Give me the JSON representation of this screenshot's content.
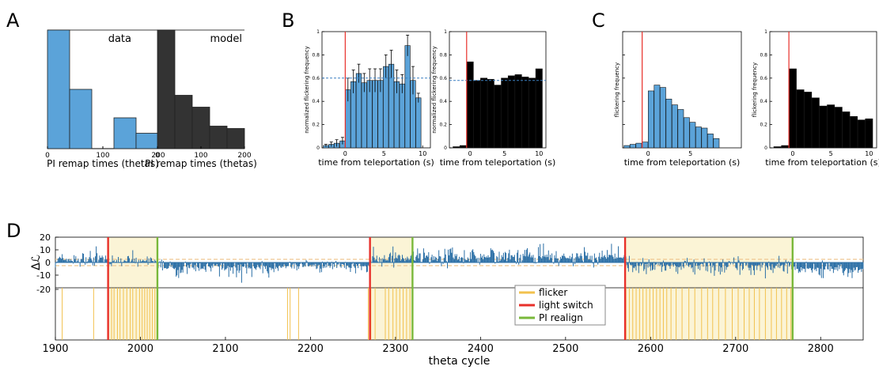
{
  "panel_labels": {
    "a": "A",
    "b": "B",
    "c": "C",
    "d": "D"
  },
  "colors": {
    "blue": "#5ba3d9",
    "blue_dark": "#2b6fa6",
    "black": "#000000",
    "dark_gray": "#333333",
    "red": "#e8302a",
    "green": "#79b83a",
    "flicker": "#f2c14e",
    "shade": "#fbf4d6",
    "dashed_blue": "#3a7fc0"
  },
  "chart_data": [
    {
      "id": "A-data",
      "type": "bar",
      "title": "data",
      "xlabel": "PI remap times (thetas)",
      "ylabel": "",
      "xlim": [
        0,
        200
      ],
      "ylim": [
        0,
        1
      ],
      "xticks": [
        "0",
        "100",
        "200"
      ],
      "bins": [
        [
          0,
          40
        ],
        [
          40,
          80
        ],
        [
          120,
          160
        ],
        [
          160,
          200
        ]
      ],
      "values": [
        1.0,
        0.5,
        0.26,
        0.13
      ]
    },
    {
      "id": "A-model",
      "type": "bar",
      "title": "model",
      "xlabel": "PI remap times (thetas)",
      "ylabel": "",
      "xlim": [
        0,
        200
      ],
      "ylim": [
        0,
        1
      ],
      "xticks": [
        "0",
        "100",
        "200"
      ],
      "bins": [
        [
          0,
          40
        ],
        [
          40,
          80
        ],
        [
          80,
          120
        ],
        [
          120,
          160
        ],
        [
          160,
          200
        ]
      ],
      "values": [
        1.0,
        0.45,
        0.35,
        0.19,
        0.17
      ]
    },
    {
      "id": "B-data",
      "type": "bar",
      "title": "",
      "xlabel": "time from teleportation (s)",
      "ylabel": "normalized flickering frequency",
      "xlim": [
        -3,
        11
      ],
      "ylim": [
        0,
        1
      ],
      "xticks": [
        "0",
        "5",
        "10"
      ],
      "yticks": [
        "0",
        "0.2",
        "0.4",
        "0.6",
        "0.8",
        "1"
      ],
      "x": [
        -2.5,
        -1.8,
        -1.1,
        -0.35,
        0.35,
        1.05,
        1.75,
        2.45,
        3.15,
        3.85,
        4.55,
        5.25,
        5.95,
        6.65,
        7.35,
        8.05,
        8.75,
        9.45
      ],
      "values": [
        0.02,
        0.03,
        0.04,
        0.06,
        0.5,
        0.57,
        0.64,
        0.56,
        0.58,
        0.58,
        0.58,
        0.7,
        0.72,
        0.57,
        0.55,
        0.88,
        0.58,
        0.43
      ],
      "errors": [
        0.01,
        0.02,
        0.03,
        0.03,
        0.1,
        0.1,
        0.08,
        0.08,
        0.1,
        0.1,
        0.1,
        0.1,
        0.12,
        0.1,
        0.08,
        0.09,
        0.12,
        0.04
      ],
      "vline": 0,
      "hline": 0.6
    },
    {
      "id": "B-model",
      "type": "bar",
      "title": "",
      "xlabel": "time from teleportation (s)",
      "ylabel": "normalized flickering frequency",
      "xlim": [
        -3,
        11
      ],
      "ylim": [
        0,
        1
      ],
      "xticks": [
        "0",
        "5",
        "10"
      ],
      "yticks": [
        "0",
        "0.2",
        "0.4",
        "0.6",
        "0.8",
        "1"
      ],
      "x": [
        -2,
        -1,
        0,
        1,
        2,
        3,
        4,
        5,
        6,
        7,
        8,
        9,
        10
      ],
      "values": [
        0.01,
        0.02,
        0.74,
        0.58,
        0.6,
        0.59,
        0.54,
        0.6,
        0.62,
        0.63,
        0.61,
        0.6,
        0.68
      ],
      "vline": -0.5,
      "hline": 0.58
    },
    {
      "id": "C-data",
      "type": "bar",
      "title": "",
      "xlabel": "time from teleportation (s)",
      "ylabel": "flickering frequency",
      "xlim": [
        -3,
        11
      ],
      "ylim": [
        0,
        1
      ],
      "xticks": [
        "0",
        "5"
      ],
      "x": [
        -2.5,
        -1.8,
        -1.1,
        -0.35,
        0.35,
        1.05,
        1.75,
        2.45,
        3.15,
        3.85,
        4.55,
        5.25,
        5.95,
        6.65,
        7.35,
        8.05
      ],
      "values": [
        0.02,
        0.03,
        0.04,
        0.05,
        0.49,
        0.54,
        0.52,
        0.42,
        0.37,
        0.33,
        0.26,
        0.22,
        0.18,
        0.17,
        0.12,
        0.08
      ],
      "vline": -0.7
    },
    {
      "id": "C-model",
      "type": "bar",
      "title": "",
      "xlabel": "time from teleportation (s)",
      "ylabel": "flickering frequency",
      "xlim": [
        -3,
        11
      ],
      "ylim": [
        0,
        1
      ],
      "xticks": [
        "0",
        "5",
        "10"
      ],
      "x": [
        -2,
        -1,
        0,
        1,
        2,
        3,
        4,
        5,
        6,
        7,
        8,
        9,
        10
      ],
      "values": [
        0.01,
        0.02,
        0.68,
        0.5,
        0.48,
        0.43,
        0.36,
        0.37,
        0.35,
        0.31,
        0.27,
        0.24,
        0.25
      ],
      "vline": -0.5
    },
    {
      "id": "D",
      "type": "line",
      "title": "",
      "xlabel": "theta cycle",
      "ylabel": "Δℒ",
      "xlim": [
        1900,
        2850
      ],
      "ylim": [
        -20,
        20
      ],
      "xticks": [
        "1900",
        "2000",
        "2100",
        "2200",
        "2300",
        "2400",
        "2500",
        "2600",
        "2700",
        "2800"
      ],
      "yticks": [
        "20",
        "10",
        "0",
        "-10",
        "-20"
      ],
      "light_switch": [
        1962,
        2270,
        2570
      ],
      "pi_realign": [
        2020,
        2320,
        2767
      ],
      "threshold": 2.5,
      "segments": [
        {
          "from": 1900,
          "to": 1962,
          "mean": 2.5,
          "amp": 7
        },
        {
          "from": 1962,
          "to": 2020,
          "mean": 1.0,
          "amp": 6
        },
        {
          "from": 2020,
          "to": 2160,
          "mean": -4.5,
          "amp": 8
        },
        {
          "from": 2160,
          "to": 2270,
          "mean": -3.0,
          "amp": 6
        },
        {
          "from": 2270,
          "to": 2320,
          "mean": 2.5,
          "amp": 9
        },
        {
          "from": 2320,
          "to": 2570,
          "mean": 4.0,
          "amp": 9
        },
        {
          "from": 2570,
          "to": 2767,
          "mean": -2.5,
          "amp": 9
        },
        {
          "from": 2767,
          "to": 2850,
          "mean": -5.0,
          "amp": 8
        }
      ],
      "flicker_events": [
        1908,
        1945,
        1962,
        1966,
        1969,
        1973,
        1976,
        1980,
        1984,
        1988,
        1991,
        1995,
        1999,
        2002,
        2005,
        2008,
        2011,
        2014,
        2017,
        2173,
        2176,
        2186,
        2268,
        2271,
        2276,
        2288,
        2292,
        2297,
        2301,
        2305,
        2309,
        2313,
        2317,
        2571,
        2575,
        2579,
        2583,
        2587,
        2591,
        2595,
        2599,
        2603,
        2607,
        2611,
        2615,
        2619,
        2624,
        2630,
        2637,
        2645,
        2652,
        2660,
        2667,
        2673,
        2680,
        2688,
        2696,
        2703,
        2710,
        2716,
        2722,
        2728,
        2735,
        2742,
        2748,
        2754,
        2760,
        2765
      ]
    }
  ],
  "legend": {
    "items": [
      {
        "label": "flicker",
        "color": "#f2c14e"
      },
      {
        "label": "light switch",
        "color": "#e8302a"
      },
      {
        "label": "PI realign",
        "color": "#79b83a"
      }
    ]
  }
}
